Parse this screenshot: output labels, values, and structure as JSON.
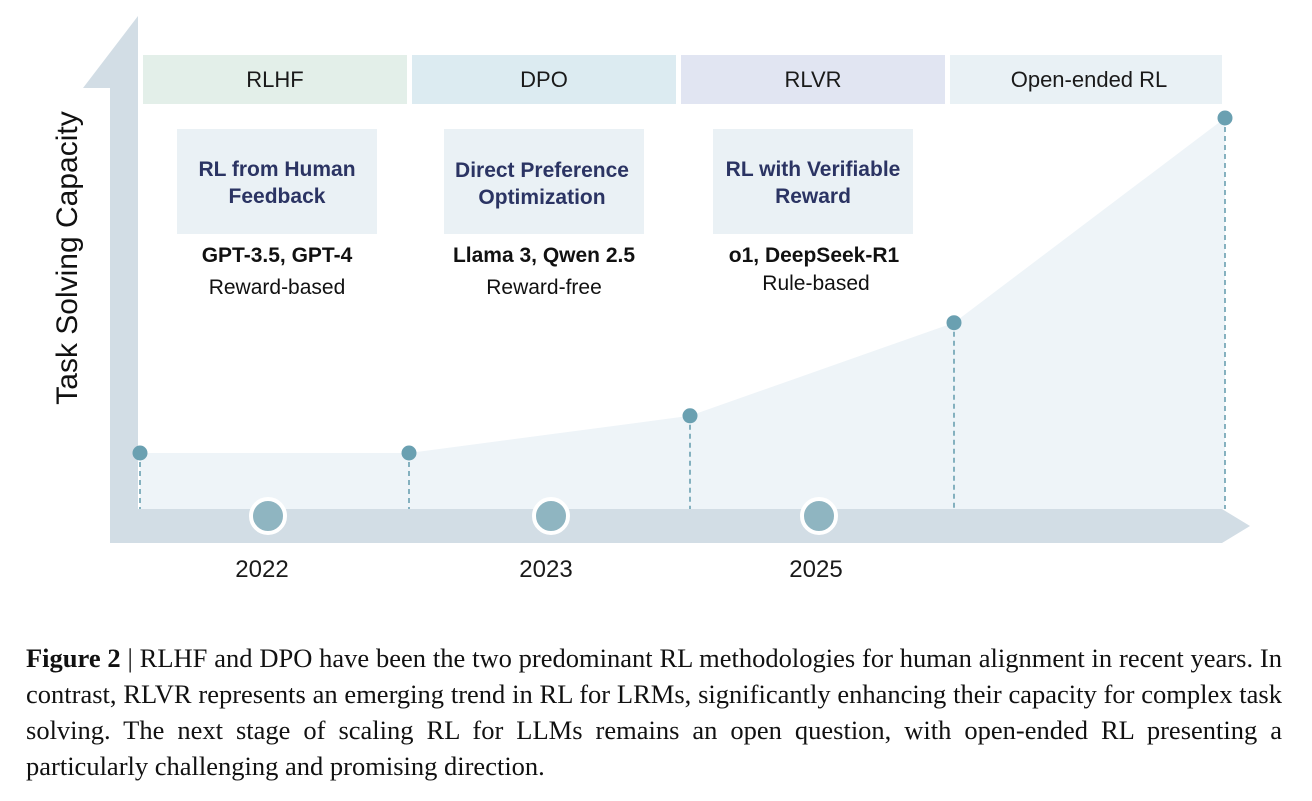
{
  "y_axis_label": "Task Solving Capacity",
  "stages": [
    {
      "header": "RLHF",
      "title_lines": [
        "RL from Human",
        "Feedback"
      ],
      "models": "GPT-3.5, GPT-4",
      "type": "Reward-based"
    },
    {
      "header": "DPO",
      "title_lines": [
        "Direct Preference",
        "Optimization"
      ],
      "models": "Llama 3, Qwen 2.5",
      "type": "Reward-free"
    },
    {
      "header": "RLVR",
      "title_lines": [
        "RL with Verifiable",
        "Reward"
      ],
      "models": "o1, DeepSeek-R1",
      "type": "Rule-based"
    },
    {
      "header": "Open-ended RL"
    }
  ],
  "years": [
    "2022",
    "2023",
    "2025"
  ],
  "capacity_points": [
    1.0,
    1.0,
    1.4,
    2.4,
    4.6
  ],
  "colors": {
    "header_rlhf": "#e3efe9",
    "header_dpo": "#dcebf1",
    "header_rlvr": "#e1e5f2",
    "header_open": "#e9f1f5",
    "box_fill": "#eaf1f5",
    "box_title": "#2b3463",
    "point": "#6aa0b1",
    "axis": "#d2dde5",
    "area": "#eef4f8"
  },
  "caption": {
    "label": "Figure 2",
    "separator": " | ",
    "text": "RLHF and DPO have been the two predominant RL methodologies for human alignment in recent years. In contrast, RLVR represents an emerging trend in RL for LRMs, significantly enhancing their capacity for complex task solving.  The next stage of scaling RL for LLMs remains an open question, with open-ended RL presenting a particularly challenging and promising direction."
  }
}
